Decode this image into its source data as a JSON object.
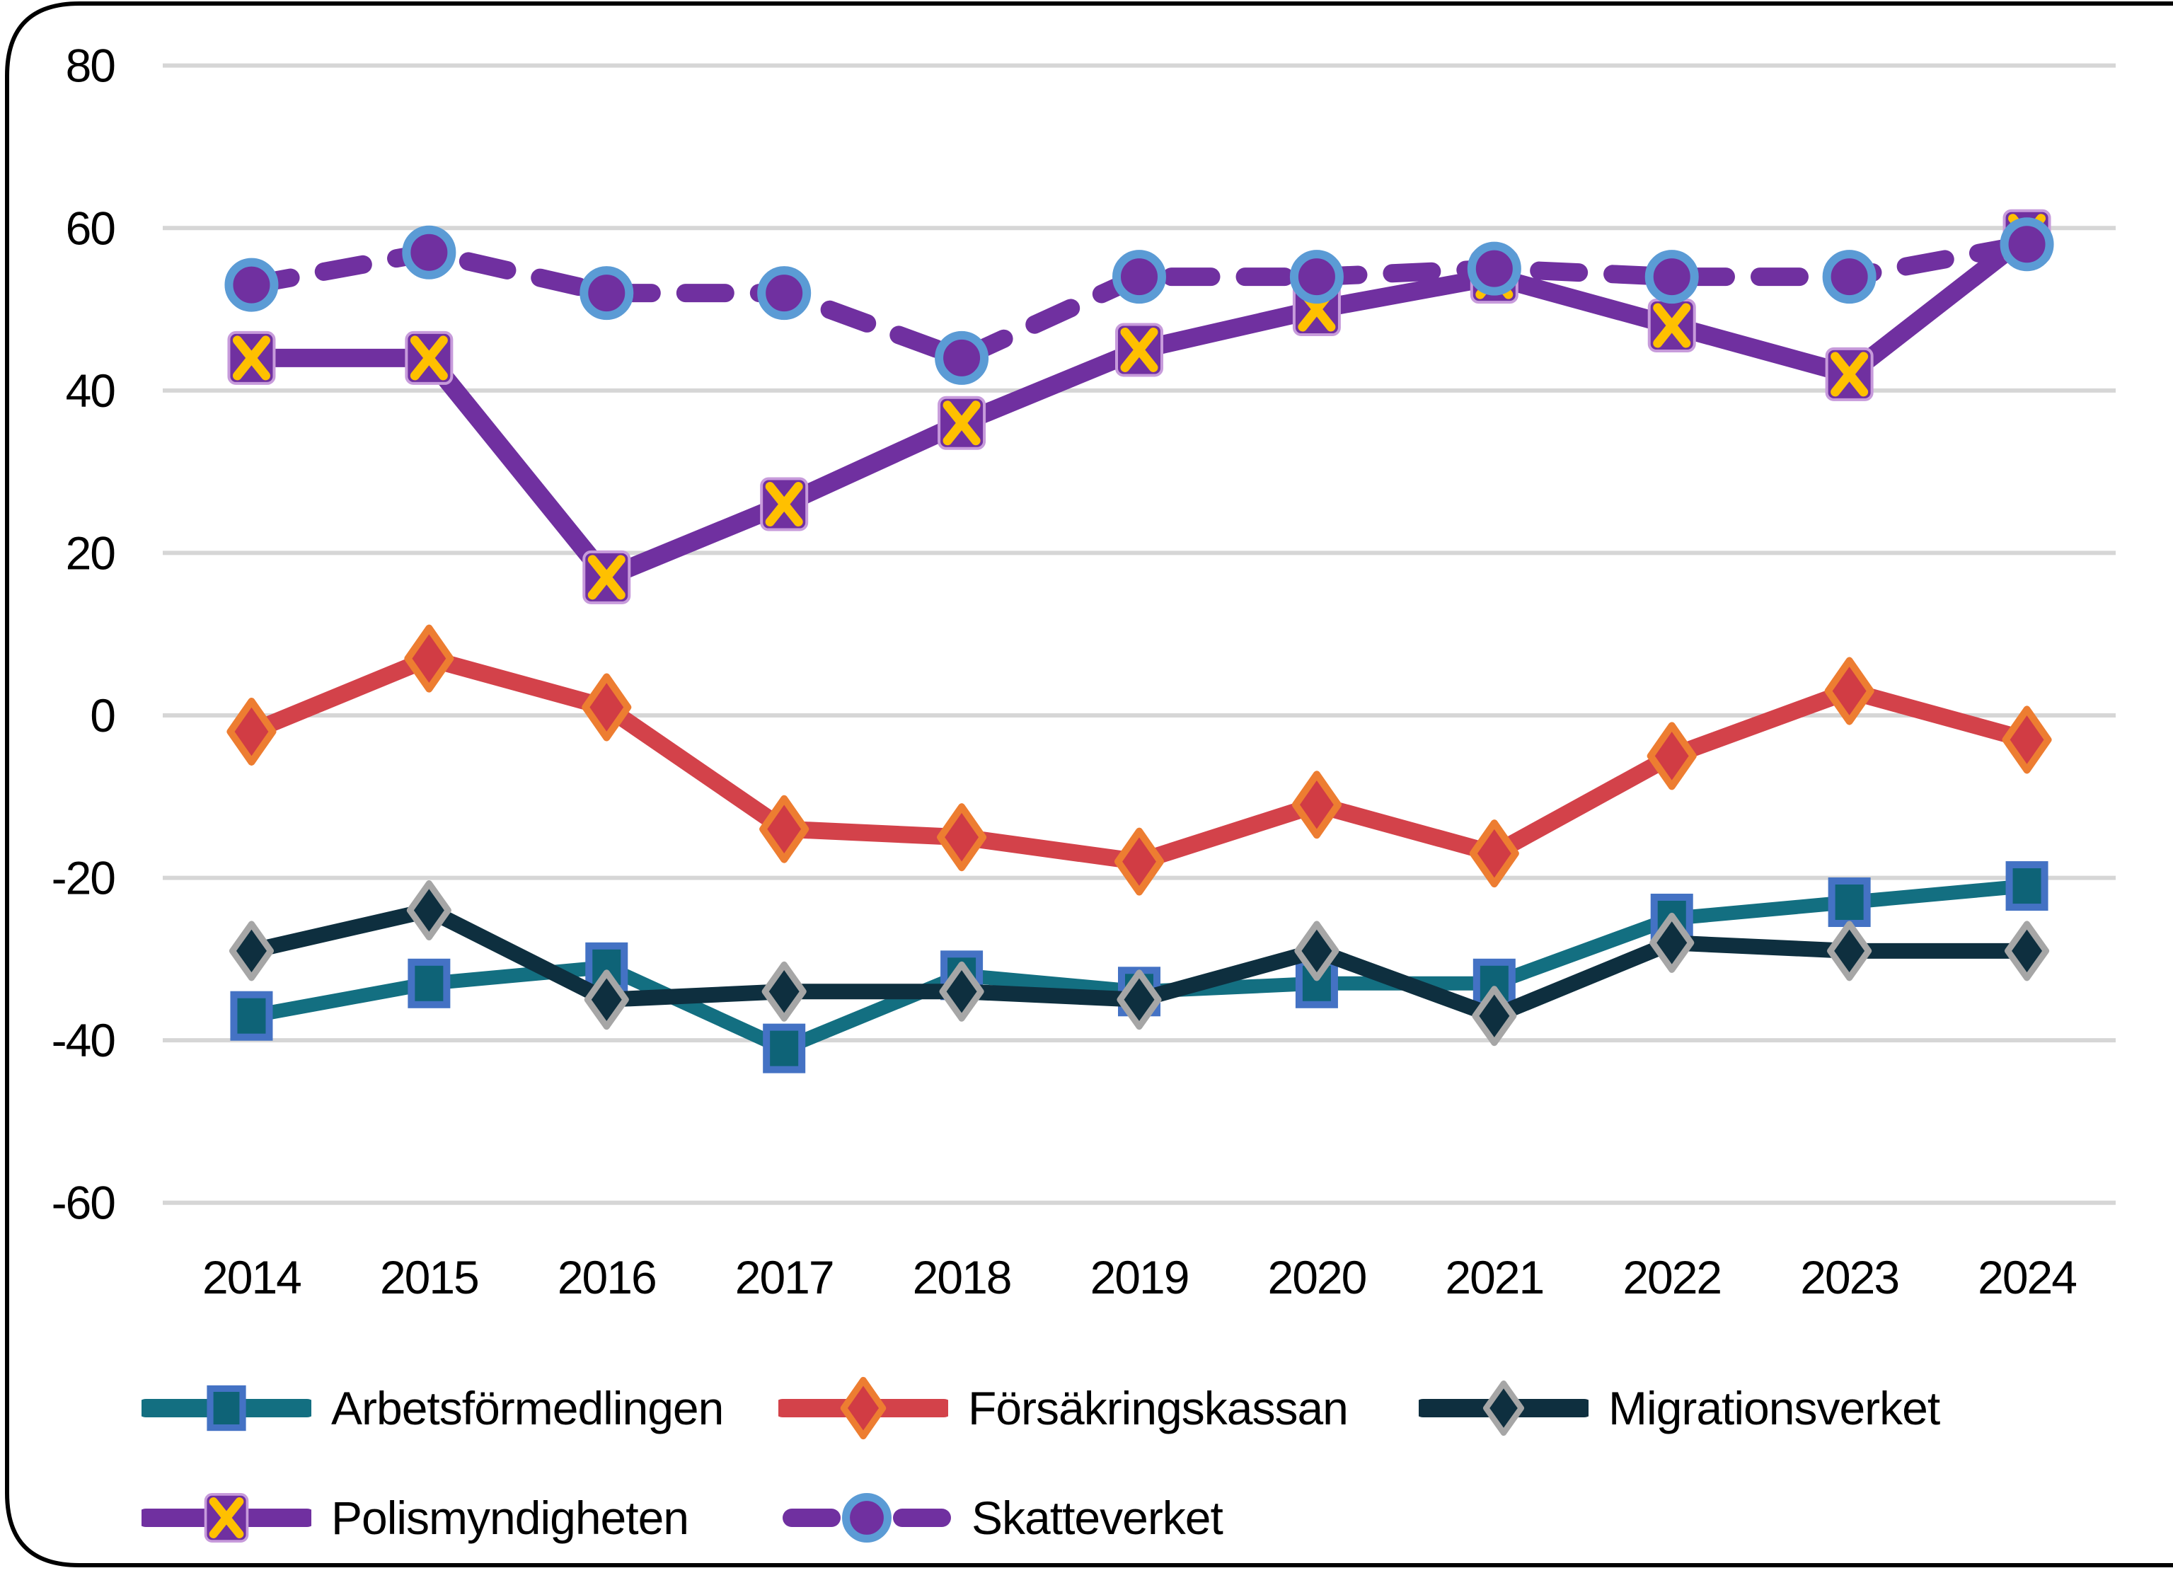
{
  "chart_data": {
    "type": "line",
    "title": "",
    "xlabel": "",
    "ylabel": "",
    "x": [
      "2014",
      "2015",
      "2016",
      "2017",
      "2018",
      "2019",
      "2020",
      "2021",
      "2022",
      "2023",
      "2024"
    ],
    "ylim": [
      -60,
      80
    ],
    "yticks": [
      80,
      60,
      40,
      20,
      0,
      -20,
      -40,
      -60
    ],
    "grid": true,
    "legend_position": "bottom",
    "gridline_color": "#D6D6D6",
    "axis_text_color": "#000000",
    "series": [
      {
        "name": "Arbetsförmedlingen",
        "marker": "square",
        "line_style": "solid",
        "color": "#136F81",
        "marker_fill": "#0E6377",
        "marker_stroke": "#4472C4",
        "values": [
          -37,
          -33,
          -31,
          -41,
          -32,
          -34,
          -33,
          -33,
          -25,
          -23,
          -21
        ]
      },
      {
        "name": "Försäkringskassan",
        "marker": "diamond",
        "line_style": "solid",
        "color": "#D3424A",
        "marker_fill": "#D13C44",
        "marker_stroke": "#ED7D31",
        "values": [
          -2,
          7,
          1,
          -14,
          -15,
          -18,
          -11,
          -17,
          -5,
          3,
          -3
        ]
      },
      {
        "name": "Migrationsverket",
        "marker": "diamond-small",
        "line_style": "solid",
        "color": "#0E2F3F",
        "marker_fill": "#0E2F3F",
        "marker_stroke": "#A6A6A6",
        "values": [
          -29,
          -24,
          -35,
          -34,
          -34,
          -35,
          -29,
          -37,
          -28,
          -29,
          -29
        ]
      },
      {
        "name": "Polismyndigheten",
        "marker": "x-square",
        "line_style": "solid",
        "color": "#7030A0",
        "marker_fill": "#7030A0",
        "marker_stroke": "#FFC000",
        "marker_outline": "#C79BDB",
        "values": [
          44,
          44,
          17,
          26,
          36,
          45,
          50,
          54,
          48,
          42,
          59
        ]
      },
      {
        "name": "Skatteverket",
        "marker": "circle",
        "line_style": "dashed",
        "color": "#7030A0",
        "marker_fill": "#7030A0",
        "marker_stroke": "#5B9BD5",
        "values": [
          53,
          57,
          52,
          52,
          44,
          54,
          54,
          55,
          54,
          54,
          58
        ]
      }
    ]
  }
}
